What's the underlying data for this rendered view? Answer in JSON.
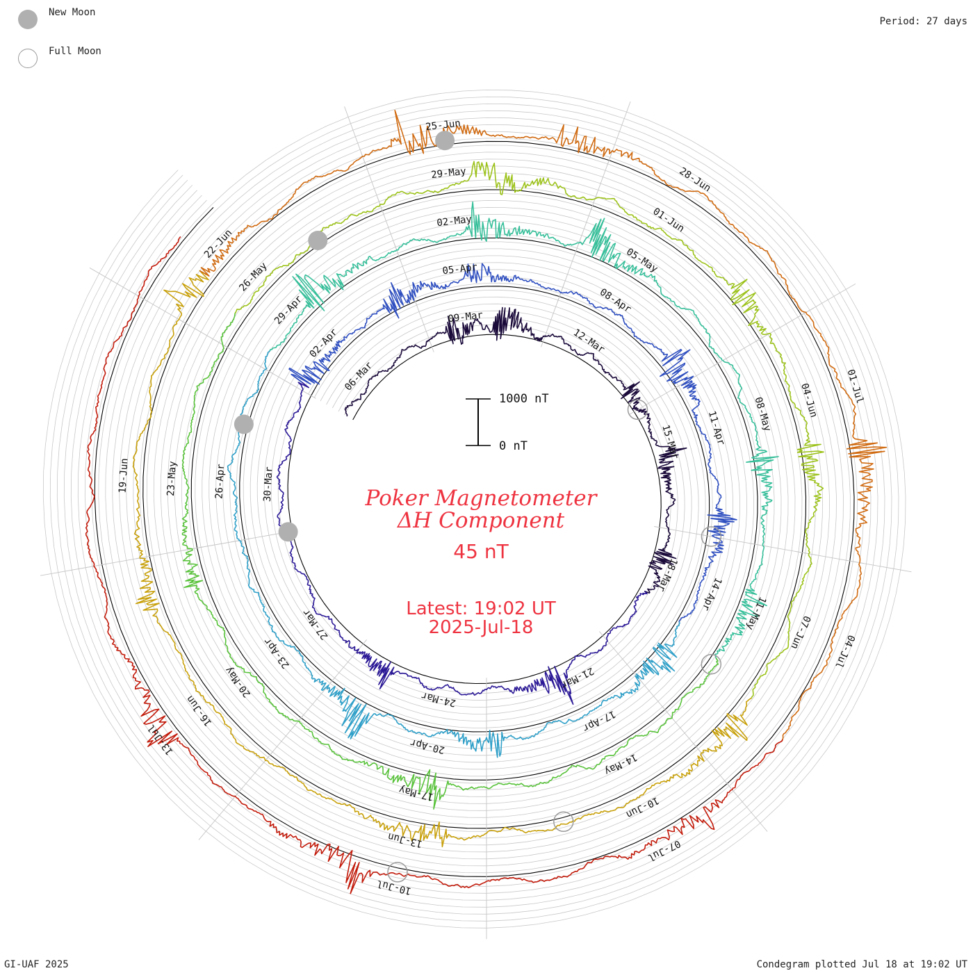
{
  "legend": {
    "new_moon_label": "New Moon",
    "full_moon_label": "Full Moon"
  },
  "header": {
    "period": "Period: 27 days"
  },
  "footer": {
    "credit": "GI-UAF 2025",
    "plotted": "Condegram plotted Jul 18 at 19:02 UT"
  },
  "title": {
    "line1": "Poker Magnetometer",
    "line2": "ΔH Component",
    "value": "45 nT",
    "latest_line1": "Latest: 19:02 UT",
    "latest_line2": "2025-Jul-18"
  },
  "scale_bar": {
    "top_label": "1000 nT",
    "bottom_label": "0 nT"
  },
  "chart_data": {
    "type": "line",
    "subtype": "condegram-spiral",
    "period_days": 27,
    "start_date": "2025-03-05",
    "end_date": "2025-07-18",
    "date_labels": [
      "06-Mar",
      "09-Mar",
      "12-Mar",
      "15-Mar",
      "18-Mar",
      "21-Mar",
      "24-Mar",
      "27-Mar",
      "30-Mar",
      "02-Apr",
      "05-Apr",
      "08-Apr",
      "11-Apr",
      "14-Apr",
      "17-Apr",
      "20-Apr",
      "23-Apr",
      "26-Apr",
      "29-Apr",
      "02-May",
      "05-May",
      "08-May",
      "11-May",
      "14-May",
      "17-May",
      "20-May",
      "23-May",
      "26-May",
      "29-May",
      "01-Jun",
      "04-Jun",
      "07-Jun",
      "10-Jun",
      "13-Jun",
      "16-Jun",
      "19-Jun",
      "22-Jun",
      "25-Jun",
      "28-Jun",
      "01-Jul",
      "04-Jul",
      "07-Jul",
      "10-Jul",
      "13-Jul"
    ],
    "new_moons": [
      "2025-03-29",
      "2025-04-27",
      "2025-05-27",
      "2025-06-25"
    ],
    "full_moons": [
      "2025-03-14",
      "2025-04-13",
      "2025-05-12",
      "2025-06-11",
      "2025-07-10"
    ],
    "y_units": "nT",
    "scale_nT": 1000,
    "series_colors": [
      "#1a0a3a",
      "#2a1896",
      "#2f4fc0",
      "#2e9fc8",
      "#37bf9a",
      "#58c23a",
      "#9cc21a",
      "#c8a00a",
      "#d06a10",
      "#c21a0a"
    ],
    "events": [
      {
        "day": 3.6,
        "nT": 500
      },
      {
        "day": 4.8,
        "nT": 650
      },
      {
        "day": 8.5,
        "nT": 400
      },
      {
        "day": 10.2,
        "nT": 500
      },
      {
        "day": 12.6,
        "nT": 450
      },
      {
        "day": 16.3,
        "nT": 650
      },
      {
        "day": 20.2,
        "nT": 500
      },
      {
        "day": 27.2,
        "nT": 600
      },
      {
        "day": 29.5,
        "nT": 700
      },
      {
        "day": 31.2,
        "nT": 400
      },
      {
        "day": 35.5,
        "nT": 750
      },
      {
        "day": 38.6,
        "nT": 500
      },
      {
        "day": 41.3,
        "nT": 650
      },
      {
        "day": 44.8,
        "nT": 500
      },
      {
        "day": 47.2,
        "nT": 750
      },
      {
        "day": 55.4,
        "nT": 800
      },
      {
        "day": 58.3,
        "nT": 650
      },
      {
        "day": 60.2,
        "nT": 700
      },
      {
        "day": 64.6,
        "nT": 500
      },
      {
        "day": 66.8,
        "nT": 450
      },
      {
        "day": 72.7,
        "nT": 600
      },
      {
        "day": 77.5,
        "nT": 400
      },
      {
        "day": 85.4,
        "nT": 700
      },
      {
        "day": 89.3,
        "nT": 500
      },
      {
        "day": 91.6,
        "nT": 450
      },
      {
        "day": 95.4,
        "nT": 550
      },
      {
        "day": 99.6,
        "nT": 500
      },
      {
        "day": 104.4,
        "nT": 400
      },
      {
        "day": 108.2,
        "nT": 600
      },
      {
        "day": 111.5,
        "nT": 700
      },
      {
        "day": 113.4,
        "nT": 500
      },
      {
        "day": 118.7,
        "nT": 650
      },
      {
        "day": 123.3,
        "nT": 500
      },
      {
        "day": 127.4,
        "nT": 600
      },
      {
        "day": 130.0,
        "nT": 550
      }
    ]
  }
}
